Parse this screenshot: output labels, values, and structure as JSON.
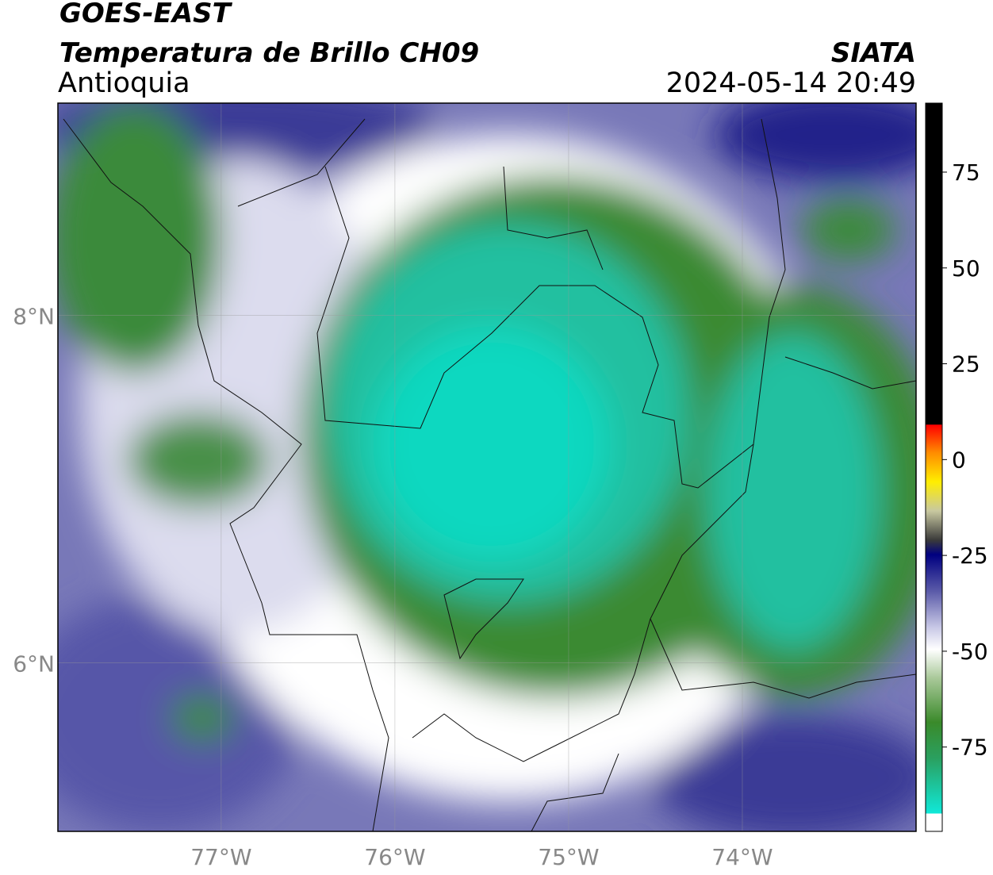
{
  "header": {
    "title": "GOES-EAST",
    "subtitle": "Temperatura de Brillo CH09",
    "region": "Antioquia",
    "source": "SIATA",
    "datetime": "2024-05-14 20:49"
  },
  "map": {
    "xlim": [
      -77.94,
      -73.0
    ],
    "ylim": [
      5.03,
      9.22
    ],
    "xticks": [
      {
        "value": -77,
        "label": "77°W"
      },
      {
        "value": -76,
        "label": "76°W"
      },
      {
        "value": -75,
        "label": "75°W"
      },
      {
        "value": -74,
        "label": "74°W"
      }
    ],
    "yticks": [
      {
        "value": 8,
        "label": "8°N"
      },
      {
        "value": 6,
        "label": "6°N"
      }
    ]
  },
  "colorbar": {
    "lim": [
      -97,
      93
    ],
    "ticks": [
      75,
      50,
      25,
      0,
      -25,
      -50,
      -75
    ]
  }
}
